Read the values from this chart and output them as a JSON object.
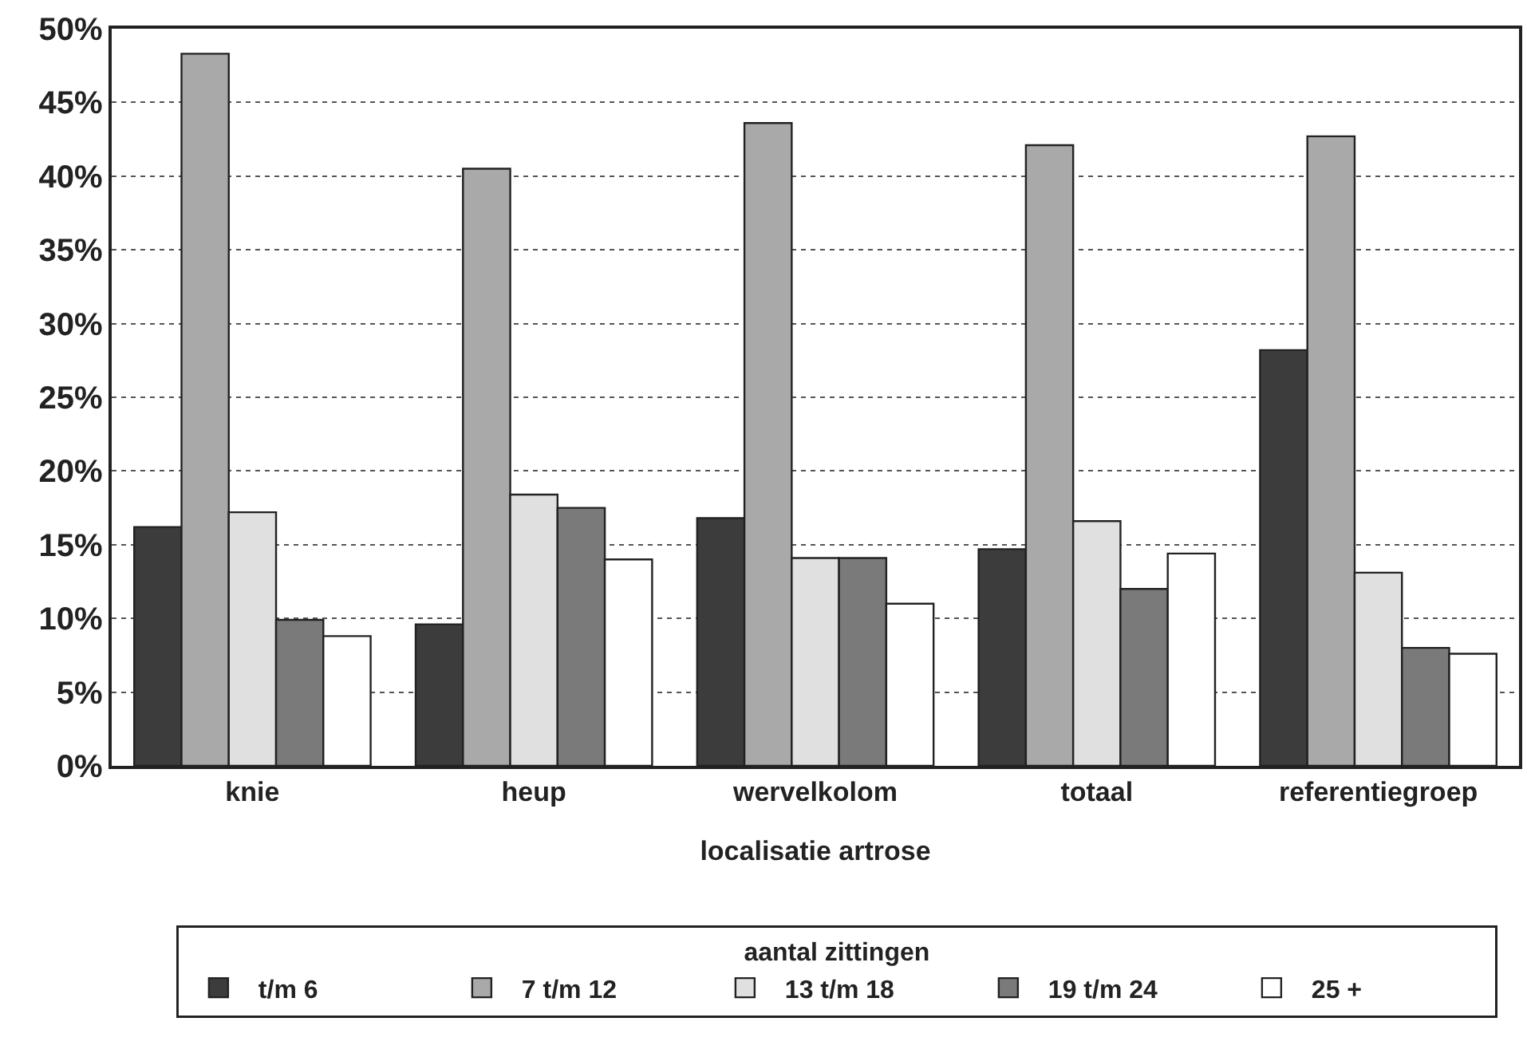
{
  "chart_data": {
    "type": "bar",
    "xlabel": "localisatie artrose",
    "legend_title": "aantal zittingen",
    "categories": [
      "knie",
      "heup",
      "wervelkolom",
      "totaal",
      "referentiegroep"
    ],
    "series": [
      {
        "name": "t/m 6",
        "color": "#3c3c3c",
        "values": [
          16.2,
          9.6,
          16.8,
          14.7,
          28.2
        ]
      },
      {
        "name": "7 t/m 12",
        "color": "#a9a9a9",
        "values": [
          48.3,
          40.5,
          43.6,
          42.1,
          42.7
        ]
      },
      {
        "name": "13 t/m 18",
        "color": "#e0e0e0",
        "values": [
          17.2,
          18.4,
          14.1,
          16.6,
          13.1
        ]
      },
      {
        "name": "19 t/m 24",
        "color": "#7a7a7a",
        "values": [
          9.9,
          17.5,
          14.1,
          12.0,
          8.0
        ]
      },
      {
        "name": "25 +",
        "color": "#ffffff",
        "values": [
          8.8,
          14.0,
          11.0,
          14.4,
          7.6
        ]
      }
    ],
    "ylim": [
      0,
      50
    ],
    "yticks": [
      {
        "value": 0,
        "label": "0%"
      },
      {
        "value": 5,
        "label": "5%"
      },
      {
        "value": 10,
        "label": "10%"
      },
      {
        "value": 15,
        "label": "15%"
      },
      {
        "value": 20,
        "label": "20%"
      },
      {
        "value": 25,
        "label": "25%"
      },
      {
        "value": 30,
        "label": "30%"
      },
      {
        "value": 35,
        "label": "35%"
      },
      {
        "value": 40,
        "label": "40%"
      },
      {
        "value": 45,
        "label": "45%"
      },
      {
        "value": 50,
        "label": "50%"
      }
    ],
    "grid": "y",
    "legend": "bottom"
  }
}
